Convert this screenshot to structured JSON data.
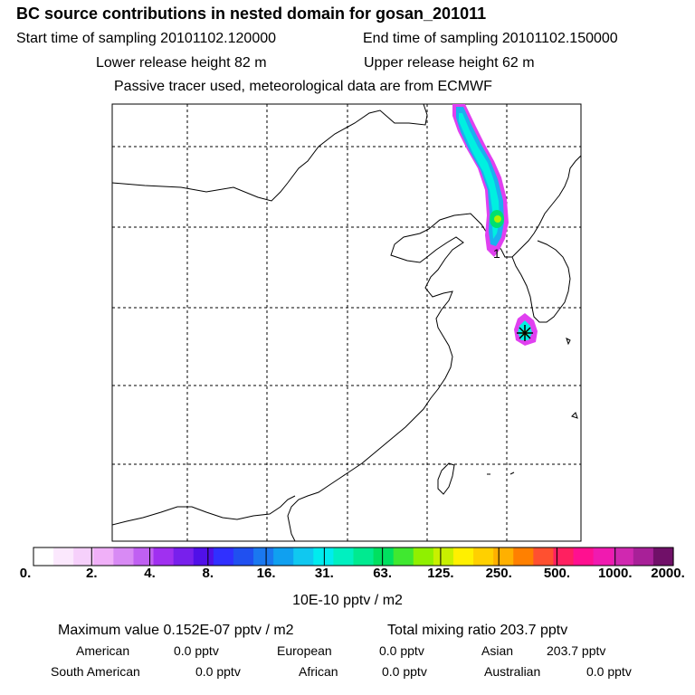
{
  "header": {
    "title": "BC  source contributions in nested domain for gosan_201011",
    "start_label": "Start time of sampling 20101102.120000",
    "end_label": "End time of sampling 20101102.150000",
    "lower_release": "Lower release height   82 m",
    "upper_release": "Upper release height   62 m",
    "tracer_info": "Passive tracer used, meteorological data are from ECMWF"
  },
  "chart_data": {
    "type": "heatmap",
    "title": "BC  source contributions in nested domain for gosan_201011",
    "map": {
      "grid": "dashed",
      "receptor_marker": "star",
      "release_label": "1"
    },
    "plume_levels": [
      {
        "level": "2.-4.",
        "color": "#e040f0"
      },
      {
        "level": "8.-16.",
        "color": "#1ab0f0"
      },
      {
        "level": "16.-31.",
        "color": "#00f0e0"
      },
      {
        "level": "31.-63.",
        "color": "#00e070"
      },
      {
        "level": "63.-125.",
        "color": "#b0f000"
      }
    ],
    "colorbar": {
      "colors": [
        "#ffffff",
        "#fbe8fd",
        "#f6d0fb",
        "#f0b0f8",
        "#d88af4",
        "#c060f2",
        "#a030f0",
        "#7820ec",
        "#5010e8",
        "#3030ff",
        "#2050f0",
        "#1a78f0",
        "#10a0f0",
        "#10c8f0",
        "#00ecee",
        "#00f0c0",
        "#00ea90",
        "#00e060",
        "#40e830",
        "#90f000",
        "#c8f000",
        "#fff000",
        "#ffd000",
        "#ffb000",
        "#ff8000",
        "#ff5030",
        "#ff2060",
        "#ff1090",
        "#f01ab0",
        "#d028b0",
        "#a82098",
        "#701068"
      ],
      "tick_labels": [
        "0.",
        "2.",
        "4.",
        "8.",
        "16.",
        "31.",
        "63.",
        "125.",
        "250.",
        "500.",
        "1000.",
        "2000."
      ],
      "unit_label": "10E-10 pptv / m2"
    }
  },
  "summary": {
    "max_value": "Maximum value  0.152E-07 pptv / m2",
    "total_mixing": "Total mixing ratio     203.7 pptv",
    "american_label": "American",
    "american_value": "0.0 pptv",
    "european_label": "European",
    "european_value": "0.0 pptv",
    "asian_label": "Asian",
    "asian_value": "203.7 pptv",
    "south_american_label": "South American",
    "south_american_value": "0.0 pptv",
    "african_label": "African",
    "african_value": "0.0 pptv",
    "australian_label": "Australian",
    "australian_value": "0.0 pptv"
  }
}
